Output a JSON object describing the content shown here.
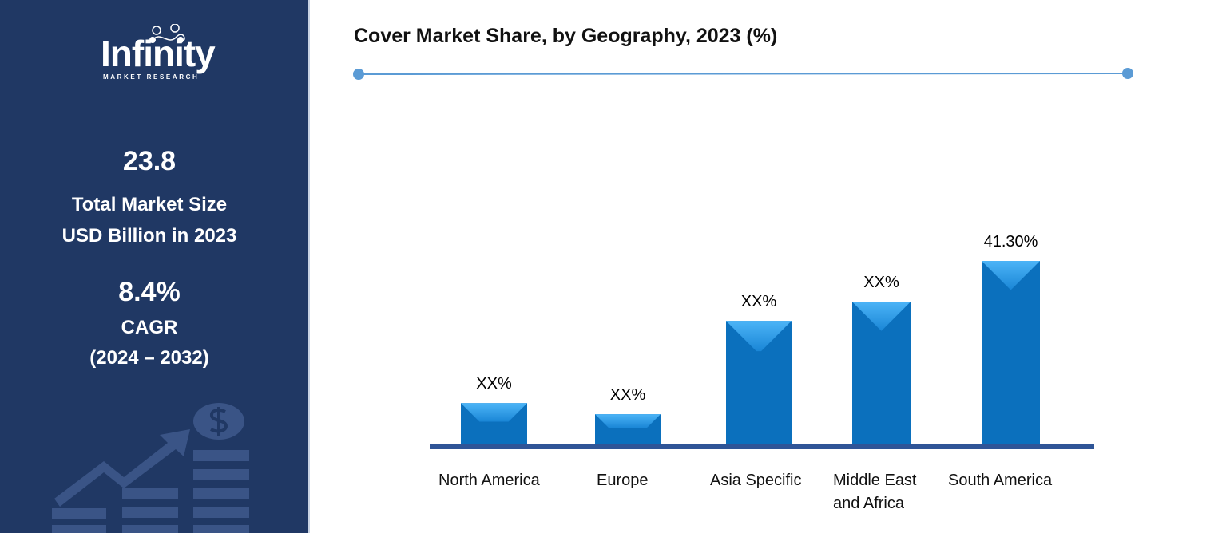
{
  "logo": {
    "name": "Infinity",
    "tagline": "MARKET RESEARCH"
  },
  "sidebar": {
    "market_size_value": "23.8",
    "market_size_label_1": "Total Market Size",
    "market_size_label_2": "USD Billion in 2023",
    "cagr_value": "8.4%",
    "cagr_label": "CAGR",
    "cagr_period": "(2024 – 2032)"
  },
  "colors": {
    "sidebar_bg": "#203864",
    "bar": "#0b74c4",
    "bar_light": "#3aa3ee",
    "axis": "#2f5597",
    "divider": "#5b9bd5"
  },
  "chart_data": {
    "type": "bar",
    "title": "Cover Market Share, by Geography, 2023 (%)",
    "categories": [
      "North America",
      "Europe",
      "Asia Specific",
      "Middle East and Africa",
      "South America"
    ],
    "category_lines": [
      [
        "North America"
      ],
      [
        "Europe"
      ],
      [
        "Asia Specific"
      ],
      [
        "Middle East",
        "and Africa"
      ],
      [
        "South America"
      ]
    ],
    "values": [
      9.3,
      6.8,
      27.8,
      32.1,
      41.3
    ],
    "data_labels": [
      "XX%",
      "XX%",
      "XX%",
      "XX%",
      "41.30%"
    ],
    "ylim": [
      0,
      45
    ],
    "grid": false,
    "legend": "none"
  }
}
